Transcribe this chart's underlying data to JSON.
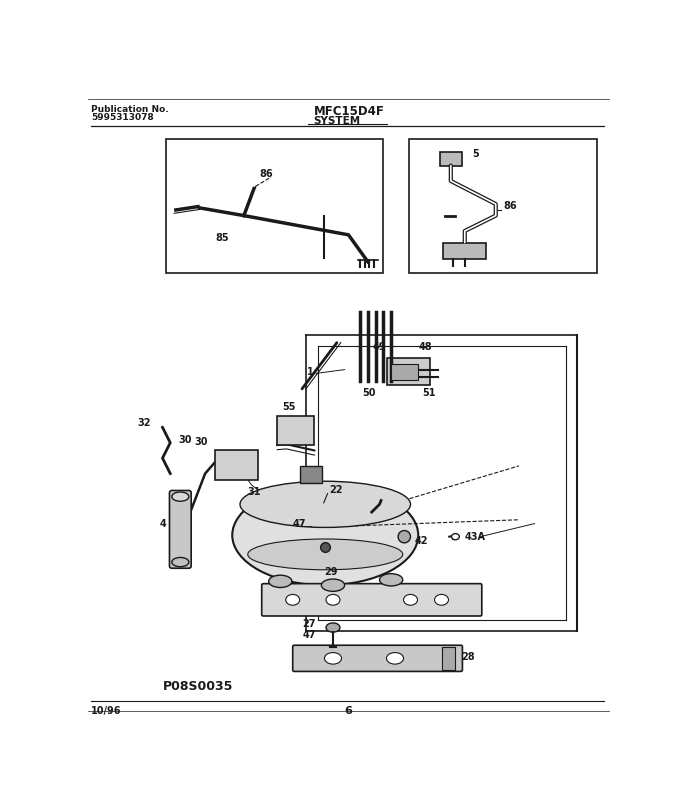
{
  "title": "MFC15D4F",
  "subtitle": "SYSTEM",
  "pub_no_label": "Publication No.",
  "pub_no": "5995313078",
  "date": "10/96",
  "page": "6",
  "bg_color": "#ffffff",
  "watermark": "P08S0035"
}
